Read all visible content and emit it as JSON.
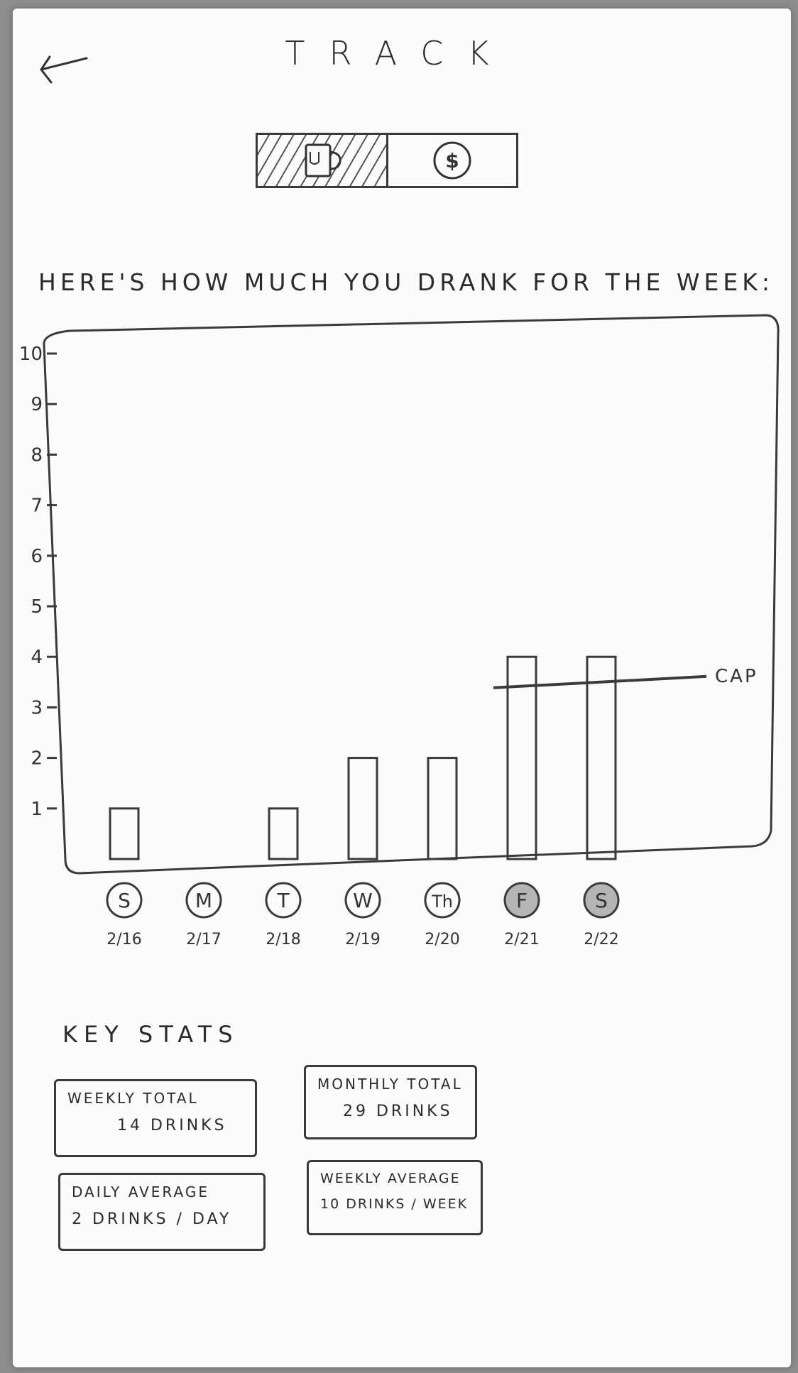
{
  "header": {
    "title": "TRACK",
    "back_icon": "arrow-left-icon"
  },
  "mode_toggle": {
    "options": [
      {
        "icon": "mug-icon",
        "active": true
      },
      {
        "icon": "dollar-coin-icon",
        "active": false
      }
    ]
  },
  "section_heading": "HERE'S HOW MUCH YOU DRANK FOR THE WEEK:",
  "chart_data": {
    "type": "bar",
    "categories": [
      "S",
      "M",
      "T",
      "W",
      "Th",
      "F",
      "S"
    ],
    "dates": [
      "2/16",
      "2/17",
      "2/18",
      "2/19",
      "2/20",
      "2/21",
      "2/22"
    ],
    "values": [
      1,
      0,
      1,
      2,
      2,
      4,
      4
    ],
    "highlighted": [
      false,
      false,
      false,
      false,
      false,
      true,
      true
    ],
    "ylim": [
      0,
      10
    ],
    "yticks": [
      1,
      2,
      3,
      4,
      5,
      6,
      7,
      8,
      9,
      10
    ],
    "cap": {
      "label": "CAP",
      "value": 3.5
    },
    "title": "",
    "xlabel": "",
    "ylabel": ""
  },
  "key_stats": {
    "heading": "KEY STATS",
    "weekly_total": {
      "label": "WEEKLY TOTAL",
      "value": "14 DRINKS"
    },
    "monthly_total": {
      "label": "MONTHLY TOTAL",
      "value": "29 DRINKS"
    },
    "daily_average": {
      "label": "DAILY AVERAGE",
      "value": "2 DRINKS / DAY"
    },
    "weekly_average": {
      "label": "WEEKLY AVERAGE",
      "value": "10 DRINKS / WEEK"
    }
  }
}
